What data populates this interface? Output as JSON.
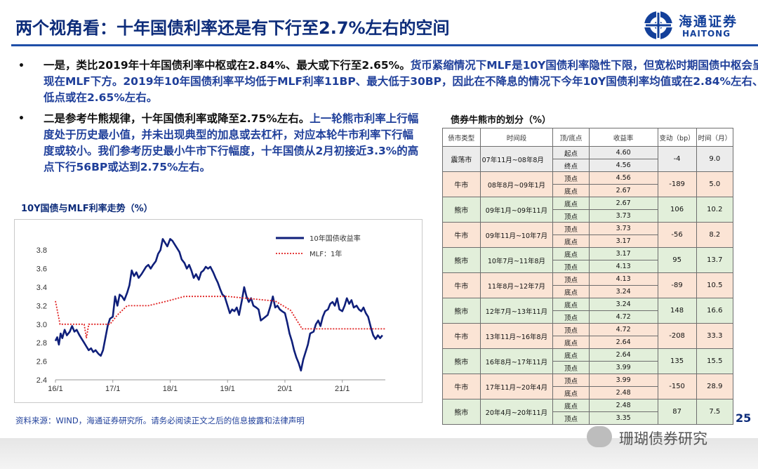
{
  "title": "两个视角看：十年国债利率还是有下行至2.7%左右的空间",
  "logo": {
    "cn": "海通证券",
    "en": "HAITONG"
  },
  "bullets": [
    {
      "marker": "•",
      "black": "一是，类比2019年十年国债利率中枢或在2.84%、最大或下行至2.65%。",
      "blue": "货币紧缩情况下MLF是10Y国债利率隐性下限，但宽松时期国债中枢会呈现在MLF下方。2019年10年国债利率平均低于MLF利率11BP、最大低于30BP，因此在不降息的情况下今年10Y国债利率均值或在2.84%左右、低点或在2.65%左右。"
    },
    {
      "marker": "•",
      "black": "二是参考牛熊规律，十年国债利率或降至2.75%左右。",
      "blue": "上一轮熊市利率上行幅度处于历史最小值，并未出现典型的加息或去杠杆，对应本轮牛市利率下行幅度或较小。我们参考历史最小牛市下行幅度，十年国债从2月初接近3.3%的高点下行56BP或达到2.75%左右。"
    }
  ],
  "chart_title": "10Y国债与MLF利率走势（%）",
  "chart_data": {
    "type": "line",
    "x_ticks": [
      "16/1",
      "17/1",
      "18/1",
      "19/1",
      "20/1",
      "21/1"
    ],
    "y_ticks": [
      "2.4",
      "2.6",
      "2.8",
      "3.0",
      "3.2",
      "3.4",
      "3.6",
      "3.8"
    ],
    "ylim": [
      2.4,
      3.9
    ],
    "xlim": [
      2016.0,
      2021.75
    ],
    "grid": false,
    "legend_position": "top-right",
    "series": [
      {
        "name": "10年国债收益率",
        "style": "solid",
        "color": "#0f1f7a",
        "points": [
          [
            2016.0,
            2.82
          ],
          [
            2016.03,
            2.86
          ],
          [
            2016.06,
            2.78
          ],
          [
            2016.09,
            2.9
          ],
          [
            2016.12,
            2.85
          ],
          [
            2016.16,
            2.94
          ],
          [
            2016.2,
            2.88
          ],
          [
            2016.25,
            2.92
          ],
          [
            2016.29,
            2.98
          ],
          [
            2016.33,
            2.92
          ],
          [
            2016.37,
            2.94
          ],
          [
            2016.42,
            2.88
          ],
          [
            2016.46,
            2.84
          ],
          [
            2016.5,
            2.8
          ],
          [
            2016.54,
            2.76
          ],
          [
            2016.58,
            2.72
          ],
          [
            2016.62,
            2.74
          ],
          [
            2016.66,
            2.7
          ],
          [
            2016.7,
            2.72
          ],
          [
            2016.75,
            2.68
          ],
          [
            2016.79,
            2.66
          ],
          [
            2016.83,
            2.72
          ],
          [
            2016.87,
            2.85
          ],
          [
            2016.91,
            2.98
          ],
          [
            2016.95,
            3.06
          ],
          [
            2017.0,
            3.08
          ],
          [
            2017.04,
            3.3
          ],
          [
            2017.08,
            3.2
          ],
          [
            2017.12,
            3.32
          ],
          [
            2017.16,
            3.3
          ],
          [
            2017.2,
            3.26
          ],
          [
            2017.25,
            3.34
          ],
          [
            2017.29,
            3.42
          ],
          [
            2017.33,
            3.58
          ],
          [
            2017.37,
            3.52
          ],
          [
            2017.41,
            3.56
          ],
          [
            2017.45,
            3.5
          ],
          [
            2017.5,
            3.54
          ],
          [
            2017.54,
            3.58
          ],
          [
            2017.58,
            3.62
          ],
          [
            2017.62,
            3.64
          ],
          [
            2017.66,
            3.6
          ],
          [
            2017.7,
            3.64
          ],
          [
            2017.75,
            3.68
          ],
          [
            2017.79,
            3.76
          ],
          [
            2017.83,
            3.8
          ],
          [
            2017.87,
            3.92
          ],
          [
            2017.91,
            3.88
          ],
          [
            2017.95,
            3.84
          ],
          [
            2018.0,
            3.92
          ],
          [
            2018.04,
            3.9
          ],
          [
            2018.08,
            3.86
          ],
          [
            2018.12,
            3.82
          ],
          [
            2018.16,
            3.78
          ],
          [
            2018.2,
            3.7
          ],
          [
            2018.25,
            3.66
          ],
          [
            2018.29,
            3.6
          ],
          [
            2018.33,
            3.64
          ],
          [
            2018.37,
            3.58
          ],
          [
            2018.41,
            3.5
          ],
          [
            2018.45,
            3.54
          ],
          [
            2018.5,
            3.48
          ],
          [
            2018.54,
            3.56
          ],
          [
            2018.58,
            3.58
          ],
          [
            2018.62,
            3.62
          ],
          [
            2018.66,
            3.6
          ],
          [
            2018.7,
            3.62
          ],
          [
            2018.75,
            3.56
          ],
          [
            2018.79,
            3.5
          ],
          [
            2018.83,
            3.45
          ],
          [
            2018.87,
            3.38
          ],
          [
            2018.91,
            3.32
          ],
          [
            2018.95,
            3.3
          ],
          [
            2019.0,
            3.2
          ],
          [
            2019.04,
            3.12
          ],
          [
            2019.08,
            3.16
          ],
          [
            2019.12,
            3.14
          ],
          [
            2019.16,
            3.18
          ],
          [
            2019.2,
            3.1
          ],
          [
            2019.25,
            3.26
          ],
          [
            2019.29,
            3.4
          ],
          [
            2019.33,
            3.3
          ],
          [
            2019.37,
            3.24
          ],
          [
            2019.41,
            3.28
          ],
          [
            2019.45,
            3.2
          ],
          [
            2019.5,
            3.18
          ],
          [
            2019.54,
            3.16
          ],
          [
            2019.58,
            3.04
          ],
          [
            2019.62,
            3.06
          ],
          [
            2019.66,
            3.08
          ],
          [
            2019.7,
            3.1
          ],
          [
            2019.75,
            3.2
          ],
          [
            2019.79,
            3.3
          ],
          [
            2019.83,
            3.18
          ],
          [
            2019.87,
            3.2
          ],
          [
            2019.91,
            3.16
          ],
          [
            2019.95,
            3.14
          ],
          [
            2020.0,
            3.12
          ],
          [
            2020.04,
            3.02
          ],
          [
            2020.08,
            2.9
          ],
          [
            2020.12,
            2.82
          ],
          [
            2020.16,
            2.72
          ],
          [
            2020.2,
            2.64
          ],
          [
            2020.24,
            2.58
          ],
          [
            2020.28,
            2.5
          ],
          [
            2020.32,
            2.62
          ],
          [
            2020.36,
            2.7
          ],
          [
            2020.4,
            2.78
          ],
          [
            2020.44,
            2.9
          ],
          [
            2020.5,
            2.92
          ],
          [
            2020.54,
            3.0
          ],
          [
            2020.58,
            3.04
          ],
          [
            2020.62,
            2.98
          ],
          [
            2020.66,
            3.08
          ],
          [
            2020.7,
            3.14
          ],
          [
            2020.75,
            3.16
          ],
          [
            2020.79,
            3.22
          ],
          [
            2020.83,
            3.24
          ],
          [
            2020.87,
            3.2
          ],
          [
            2020.91,
            3.28
          ],
          [
            2020.95,
            3.16
          ],
          [
            2021.0,
            3.14
          ],
          [
            2021.04,
            3.2
          ],
          [
            2021.08,
            3.28
          ],
          [
            2021.12,
            3.22
          ],
          [
            2021.16,
            3.26
          ],
          [
            2021.2,
            3.18
          ],
          [
            2021.25,
            3.2
          ],
          [
            2021.29,
            3.16
          ],
          [
            2021.33,
            3.14
          ],
          [
            2021.37,
            3.18
          ],
          [
            2021.41,
            3.12
          ],
          [
            2021.45,
            3.08
          ],
          [
            2021.5,
            2.96
          ],
          [
            2021.54,
            2.88
          ],
          [
            2021.58,
            2.84
          ],
          [
            2021.62,
            2.88
          ],
          [
            2021.66,
            2.85
          ],
          [
            2021.7,
            2.88
          ]
        ]
      },
      {
        "name": "MLF：1年",
        "style": "dotted",
        "color": "#e02020",
        "points": [
          [
            2016.0,
            3.25
          ],
          [
            2016.08,
            3.0
          ],
          [
            2016.5,
            3.0
          ],
          [
            2016.54,
            2.85
          ],
          [
            2016.58,
            3.0
          ],
          [
            2016.95,
            3.0
          ],
          [
            2017.08,
            3.1
          ],
          [
            2017.25,
            3.2
          ],
          [
            2017.6,
            3.2
          ],
          [
            2017.62,
            3.2
          ],
          [
            2017.95,
            3.25
          ],
          [
            2018.25,
            3.3
          ],
          [
            2018.4,
            3.3
          ],
          [
            2019.0,
            3.3
          ],
          [
            2019.83,
            3.25
          ],
          [
            2020.1,
            3.15
          ],
          [
            2020.3,
            2.95
          ],
          [
            2021.75,
            2.95
          ]
        ]
      }
    ]
  },
  "source": "资料来源：WIND，海通证券研究所。请务必阅读正文之后的信息披露和法律声明",
  "table_title": "债券牛熊市的划分（%）",
  "table": {
    "headers": [
      "债市类型",
      "时间段",
      "顶/底点",
      "收益率",
      "变动（bp）",
      "时间（月）"
    ],
    "rows": [
      {
        "type": "震荡市",
        "period": "07年11月~08年8月",
        "p1": "起点",
        "v1": "4.60",
        "p2": "终点",
        "v2": "4.56",
        "change": "-4",
        "months": "9.0",
        "bg": "#ececec"
      },
      {
        "type": "牛市",
        "period": "08年8月~09年1月",
        "p1": "顶点",
        "v1": "4.56",
        "p2": "底点",
        "v2": "2.67",
        "change": "-189",
        "months": "5.0",
        "bg": "#fbe4d5"
      },
      {
        "type": "熊市",
        "period": "09年1月~09年11月",
        "p1": "底点",
        "v1": "2.67",
        "p2": "顶点",
        "v2": "3.73",
        "change": "106",
        "months": "10.2",
        "bg": "#e2efda"
      },
      {
        "type": "牛市",
        "period": "09年11月~10年7月",
        "p1": "顶点",
        "v1": "3.73",
        "p2": "底点",
        "v2": "3.17",
        "change": "-56",
        "months": "8.2",
        "bg": "#fbe4d5"
      },
      {
        "type": "熊市",
        "period": "10年7月~11年8月",
        "p1": "底点",
        "v1": "3.17",
        "p2": "顶点",
        "v2": "4.13",
        "change": "95",
        "months": "13.7",
        "bg": "#e2efda"
      },
      {
        "type": "牛市",
        "period": "11年8月~12年7月",
        "p1": "顶点",
        "v1": "4.13",
        "p2": "底点",
        "v2": "3.24",
        "change": "-89",
        "months": "10.5",
        "bg": "#fbe4d5"
      },
      {
        "type": "熊市",
        "period": "12年7月~13年11月",
        "p1": "底点",
        "v1": "3.24",
        "p2": "顶点",
        "v2": "4.72",
        "change": "148",
        "months": "16.6",
        "bg": "#e2efda"
      },
      {
        "type": "牛市",
        "period": "13年11月~16年8月",
        "p1": "顶点",
        "v1": "4.72",
        "p2": "底点",
        "v2": "2.64",
        "change": "-208",
        "months": "33.3",
        "bg": "#fbe4d5"
      },
      {
        "type": "熊市",
        "period": "16年8月~17年11月",
        "p1": "底点",
        "v1": "2.64",
        "p2": "顶点",
        "v2": "3.99",
        "change": "135",
        "months": "15.5",
        "bg": "#e2efda"
      },
      {
        "type": "牛市",
        "period": "17年11月~20年4月",
        "p1": "顶点",
        "v1": "3.99",
        "p2": "底点",
        "v2": "2.48",
        "change": "-150",
        "months": "28.9",
        "bg": "#fbe4d5"
      },
      {
        "type": "熊市",
        "period": "20年4月~20年11月",
        "p1": "底点",
        "v1": "2.48",
        "p2": "顶点",
        "v2": "3.35",
        "change": "87",
        "months": "7.5",
        "bg": "#e2efda"
      }
    ]
  },
  "page_number": "25",
  "watermark": "珊瑚债券研究"
}
